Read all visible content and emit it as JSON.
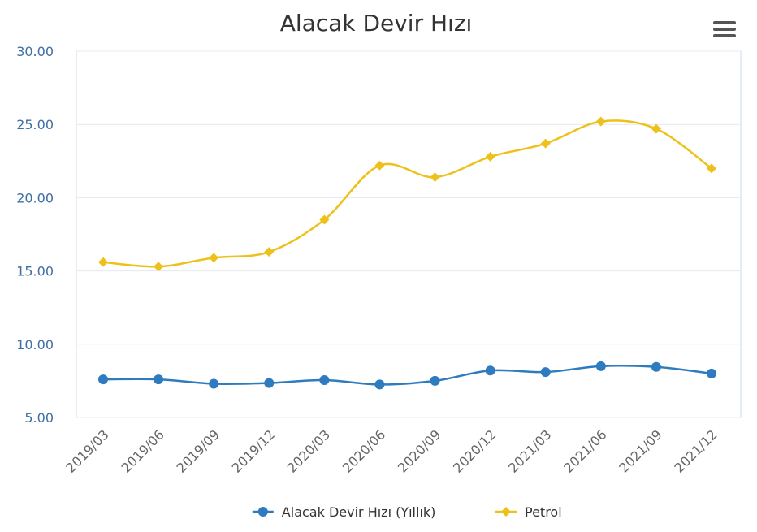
{
  "chart_data": {
    "type": "line",
    "title": "Alacak Devir Hızı",
    "xlabel": "",
    "ylabel": "",
    "categories": [
      "2019/03",
      "2019/06",
      "2019/09",
      "2019/12",
      "2020/03",
      "2020/06",
      "2020/09",
      "2020/12",
      "2021/03",
      "2021/06",
      "2021/09",
      "2021/12"
    ],
    "ylim": [
      5,
      30
    ],
    "yticks": [
      "5.00",
      "10.00",
      "15.00",
      "20.00",
      "25.00",
      "30.00"
    ],
    "grid": true,
    "legend_position": "bottom",
    "series": [
      {
        "name": "Alacak Devir Hızı (Yıllık)",
        "color": "#2e7bbf",
        "marker": "circle",
        "values": [
          7.6,
          7.6,
          7.3,
          7.35,
          7.55,
          7.25,
          7.5,
          8.2,
          8.1,
          8.5,
          8.45,
          8.0
        ]
      },
      {
        "name": "Petrol",
        "color": "#eec11a",
        "marker": "diamond",
        "values": [
          15.6,
          15.3,
          15.9,
          16.3,
          18.5,
          22.2,
          21.4,
          22.8,
          23.7,
          25.2,
          24.7,
          22.0
        ]
      }
    ]
  },
  "menu_icon": "hamburger-menu-icon"
}
